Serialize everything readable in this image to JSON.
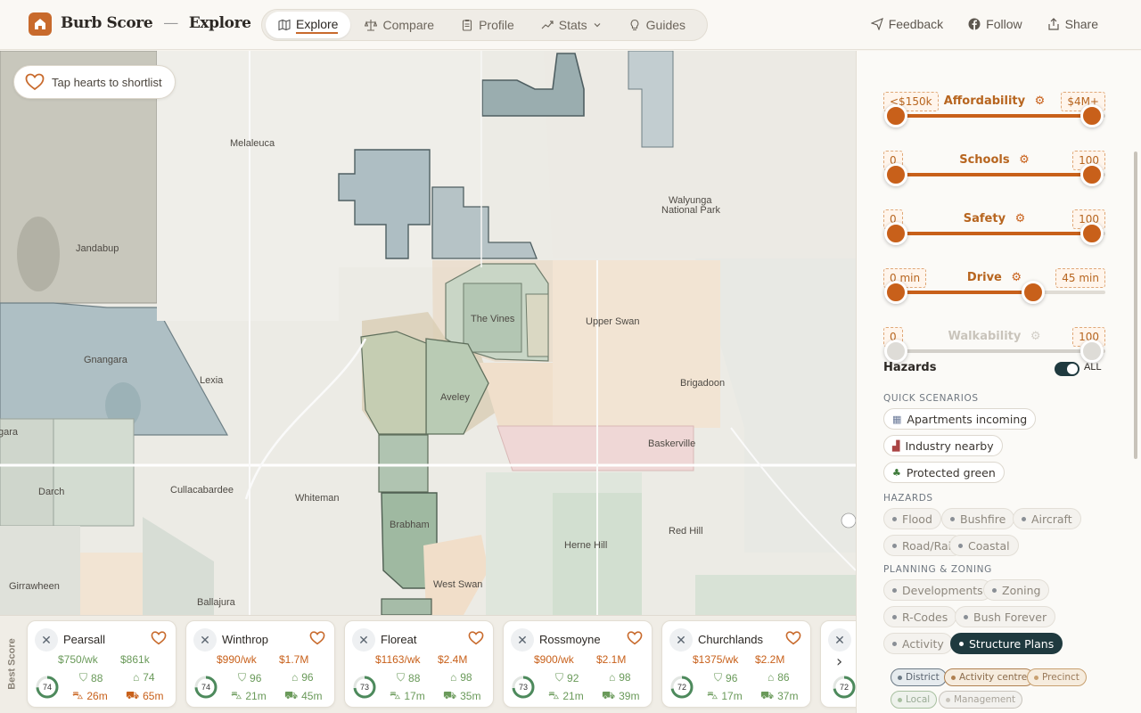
{
  "header": {
    "brand": "Burb Score",
    "separator": "—",
    "page": "Explore",
    "nav": [
      {
        "label": "Explore",
        "icon": "map-icon",
        "active": true
      },
      {
        "label": "Compare",
        "icon": "scales-icon",
        "active": false
      },
      {
        "label": "Profile",
        "icon": "clipboard-icon",
        "active": false
      },
      {
        "label": "Stats",
        "icon": "trend-icon",
        "active": false
      },
      {
        "label": "Guides",
        "icon": "lightbulb-icon",
        "active": false
      }
    ],
    "actions": {
      "feedback": "Feedback",
      "follow": "Follow",
      "share": "Share"
    }
  },
  "map": {
    "shortlist_hint": "Tap hearts to shortlist",
    "places": [
      "Melaleuca",
      "Jandabup",
      "Gnangara",
      "Lexia",
      "The Vines",
      "Upper Swan",
      "Walyunga",
      "National Park",
      "Brigadoon",
      "Aveley",
      "Baskerville",
      "Darch",
      "Cullacabardee",
      "Whiteman",
      "Brabham",
      "Red Hill",
      "Herne Hill",
      "Girrawheen",
      "Ballajura",
      "West Swan",
      "gara"
    ]
  },
  "sidebar_label": "Best Score",
  "cards": [
    {
      "name": "Pearsall",
      "rent": "$750/wk",
      "price": "$861k",
      "score": "74",
      "score_frac": 0.74,
      "schools": "88",
      "safety": "74",
      "drive": "26m",
      "transit": "65m",
      "warn": true
    },
    {
      "name": "Winthrop",
      "rent": "$990/wk",
      "price": "$1.7M",
      "score": "74",
      "score_frac": 0.74,
      "schools": "96",
      "safety": "96",
      "drive": "21m",
      "transit": "45m",
      "warn": false
    },
    {
      "name": "Floreat",
      "rent": "$1163/wk",
      "price": "$2.4M",
      "score": "73",
      "score_frac": 0.73,
      "schools": "88",
      "safety": "98",
      "drive": "17m",
      "transit": "35m",
      "warn": false
    },
    {
      "name": "Rossmoyne",
      "rent": "$900/wk",
      "price": "$2.1M",
      "score": "73",
      "score_frac": 0.73,
      "schools": "92",
      "safety": "98",
      "drive": "21m",
      "transit": "39m",
      "warn": false
    },
    {
      "name": "Churchlands",
      "rent": "$1375/wk",
      "price": "$2.2M",
      "score": "72",
      "score_frac": 0.72,
      "schools": "96",
      "safety": "86",
      "drive": "17m",
      "transit": "37m",
      "warn": false
    },
    {
      "name": "",
      "score": "72",
      "score_frac": 0.72
    }
  ],
  "filters": {
    "sliders": [
      {
        "label": "Affordability",
        "min_label": "<$150k",
        "max_label": "$4M+",
        "low": 0,
        "high": 1,
        "enabled": true
      },
      {
        "label": "Schools",
        "min_label": "0",
        "max_label": "100",
        "low": 0,
        "high": 1,
        "enabled": true
      },
      {
        "label": "Safety",
        "min_label": "0",
        "max_label": "100",
        "low": 0,
        "high": 1,
        "enabled": true
      },
      {
        "label": "Drive",
        "min_label": "0 min",
        "max_label": "45 min",
        "low": 0,
        "high": 0.7,
        "enabled": true
      },
      {
        "label": "Walkability",
        "min_label": "0",
        "max_label": "100",
        "low": 0,
        "high": 1,
        "enabled": false
      }
    ],
    "hazards_title": "Hazards",
    "toggle_label": "ALL",
    "quick_scenarios_title": "QUICK SCENARIOS",
    "quick_scenarios": [
      {
        "label": "Apartments incoming",
        "icon": "building-icon"
      },
      {
        "label": "Industry nearby",
        "icon": "factory-icon"
      },
      {
        "label": "Protected green",
        "icon": "tree-icon"
      }
    ],
    "hazards_subtitle": "HAZARDS",
    "hazards": [
      "Flood",
      "Bushfire",
      "Aircraft",
      "Road/Rail",
      "Coastal"
    ],
    "planning_title": "PLANNING & ZONING",
    "planning": [
      "Developments",
      "Zoning",
      "R-Codes",
      "Bush Forever",
      "Activity",
      "Structure Plans"
    ],
    "planning_selected": "Structure Plans",
    "structure_types": [
      "District",
      "Activity centre",
      "Precinct",
      "Local",
      "Management"
    ]
  },
  "colors": {
    "accent": "#c86a2c",
    "slider": "#c8601a",
    "dark": "#1f3a3f",
    "positive": "#6a9a5a",
    "warn": "#c8601a"
  }
}
